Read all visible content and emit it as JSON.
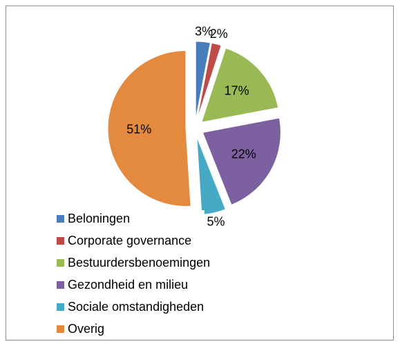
{
  "chart_data": {
    "type": "pie",
    "categories": [
      "Beloningen",
      "Corporate governance",
      "Bestuurdersbenoemingen",
      "Gezondheid en milieu",
      "Sociale omstandigheden",
      "Overig"
    ],
    "values": [
      3,
      2,
      17,
      22,
      5,
      51
    ],
    "value_labels": [
      "3%",
      "2%",
      "17%",
      "22%",
      "5%",
      "51%"
    ],
    "colors": [
      "#4a7ebb",
      "#be4b48",
      "#98b954",
      "#7d60a0",
      "#46aac5",
      "#e38a3f"
    ]
  }
}
